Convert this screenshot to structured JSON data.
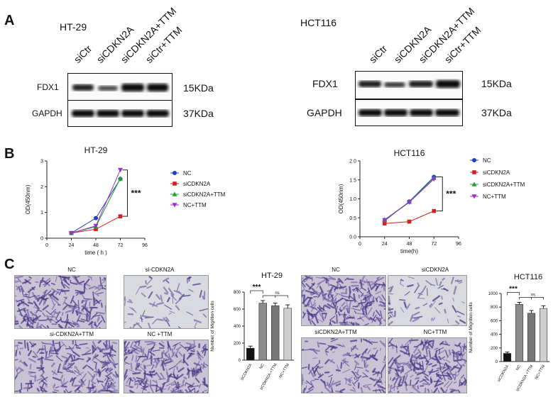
{
  "panelA": {
    "letter": "A",
    "left": {
      "cell_line": "HT-29",
      "lanes": [
        "siCtr",
        "siCDKN2A",
        "siCDKN2A+TTM",
        "siCtr+TTM"
      ],
      "proteins": [
        "FDX1",
        "GAPDH"
      ],
      "sizes": [
        "15KDa",
        "37KDa"
      ]
    },
    "right": {
      "cell_line": "HCT116",
      "lanes": [
        "siCtr",
        "siCDKN2A",
        "siCDKN2A+TTM",
        "siCtr+TTM"
      ],
      "proteins": [
        "FDX1",
        "GAPDH"
      ],
      "sizes": [
        "15KDa",
        "37KDa"
      ]
    }
  },
  "panelB": {
    "letter": "B"
  },
  "panelC": {
    "letter": "C",
    "left_micro_labels": [
      "NC",
      "si-CDKN2A",
      "si-CDKN2A+TTM",
      "NC +TTM"
    ],
    "right_micro_labels": [
      "NC",
      "siCDKN2A",
      "siCDKN2A+TTM",
      "NC+TTM"
    ]
  },
  "colors": {
    "nc": "#1f3fbf",
    "si": "#d42020",
    "si_ttm": "#22a02c",
    "nc_ttm": "#9b30d0"
  },
  "chart_data": [
    {
      "type": "line",
      "title": "HT-29",
      "xlabel": "time ( h )",
      "ylabel": "OD(450nm)",
      "x": [
        24,
        48,
        72
      ],
      "xticks": [
        0,
        24,
        48,
        72,
        96
      ],
      "yticks": [
        0,
        1,
        2,
        3
      ],
      "xlim": [
        0,
        96
      ],
      "ylim": [
        0,
        3
      ],
      "significance": "***",
      "series": [
        {
          "name": "NC",
          "values": [
            0.2,
            0.78,
            2.3
          ]
        },
        {
          "name": "siCDKN2A",
          "values": [
            0.2,
            0.35,
            0.85
          ]
        },
        {
          "name": "siCDKN2A+TTM",
          "values": [
            0.2,
            0.45,
            2.32
          ]
        },
        {
          "name": "NC+TTM",
          "values": [
            0.2,
            0.48,
            2.65
          ]
        }
      ]
    },
    {
      "type": "line",
      "title": "HCT116",
      "xlabel": "time(h)",
      "ylabel": "OD(450nm)",
      "x": [
        24,
        48,
        72
      ],
      "xticks": [
        0,
        24,
        48,
        72,
        96
      ],
      "yticks": [
        0.0,
        0.5,
        1.0,
        1.5,
        2.0
      ],
      "xlim": [
        0,
        96
      ],
      "ylim": [
        0,
        2
      ],
      "significance": "***",
      "series": [
        {
          "name": "NC",
          "values": [
            0.42,
            0.93,
            1.58
          ]
        },
        {
          "name": "siCDKN2A",
          "values": [
            0.35,
            0.4,
            0.68
          ]
        },
        {
          "name": "siCDKN2A+TTM",
          "values": [
            0.45,
            0.92,
            1.55
          ]
        },
        {
          "name": "NC+TTM",
          "values": [
            0.44,
            0.91,
            1.52
          ]
        }
      ]
    },
    {
      "type": "bar",
      "title": "HT-29",
      "ylabel": "Number of Migrition cells",
      "categories": [
        "siCDKN2A",
        "NC",
        "siCDKN2A +TTM",
        "NC+TTM"
      ],
      "values": [
        140,
        670,
        640,
        610
      ],
      "errors": [
        25,
        30,
        30,
        40
      ],
      "yticks": [
        0,
        200,
        400,
        600,
        800
      ],
      "ylim": [
        0,
        800
      ],
      "annotations": [
        "***",
        "ns"
      ]
    },
    {
      "type": "bar",
      "title": "HCT116",
      "ylabel": "Number of Migrition cells",
      "categories": [
        "siCDKN2A",
        "NC",
        "siCDKN2A +TTM",
        "NC+TTM"
      ],
      "values": [
        120,
        840,
        710,
        780
      ],
      "errors": [
        20,
        30,
        40,
        40
      ],
      "yticks": [
        0,
        200,
        400,
        600,
        800,
        1000
      ],
      "ylim": [
        0,
        1000
      ],
      "annotations": [
        "***",
        "ns"
      ]
    }
  ]
}
